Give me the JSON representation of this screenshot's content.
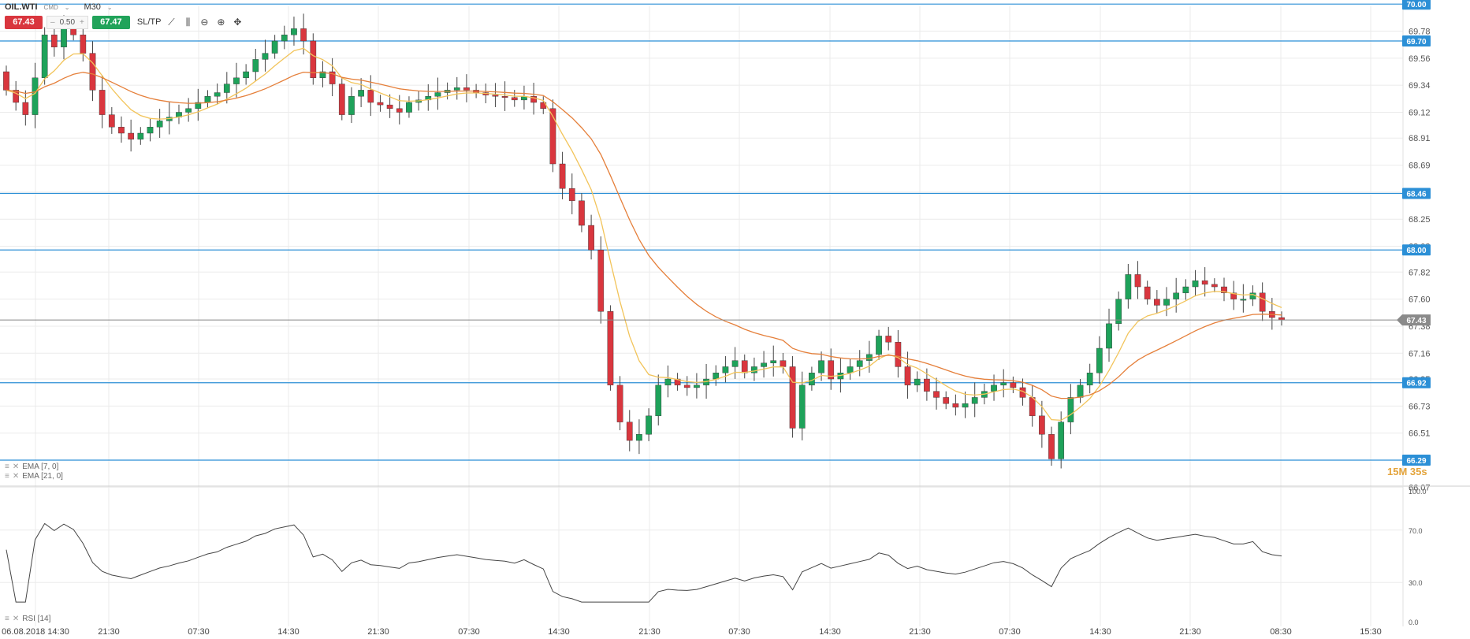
{
  "toolbar": {
    "symbol": "OIL.WTI",
    "symbol_type": "CMD",
    "timeframe": "M30",
    "sell_price": "67.43",
    "volume": "0.50",
    "volume_minus": "–",
    "volume_plus": "+",
    "buy_price": "67.47",
    "sltp_label": "SL/TP",
    "icons": [
      "line-tool-icon",
      "candles-icon",
      "zoom-out-icon",
      "zoom-in-icon",
      "crosshair-icon"
    ]
  },
  "indicators": {
    "ema_fast": "EMA [7, 0]",
    "ema_slow": "EMA [21, 0]",
    "rsi": "RSI [14]"
  },
  "countdown": "15M 35s",
  "colors": {
    "up": "#1ea25a",
    "down": "#d9363e",
    "ema_fast": "#f2c45a",
    "ema_slow": "#e57f3a",
    "hline": "#2b8fd6",
    "price_line": "#888888",
    "grid": "#ebebeb"
  },
  "chart_data": [
    {
      "type": "candlestick",
      "symbol": "OIL.WTI",
      "timeframe": "M30",
      "y_axis": {
        "ticks": [
          "69.78",
          "69.56",
          "69.34",
          "69.12",
          "68.91",
          "68.69",
          "68.47",
          "68.25",
          "68.03",
          "67.82",
          "67.60",
          "67.38",
          "67.16",
          "66.95",
          "66.73",
          "66.51",
          "66.29",
          "66.07"
        ],
        "range": [
          66.07,
          70.0
        ]
      },
      "x_axis": {
        "ticks": [
          "06.08.2018 14:30",
          "21:30",
          "07:30",
          "14:30",
          "21:30",
          "07:30",
          "14:30",
          "21:30",
          "07:30",
          "14:30",
          "21:30",
          "07:30",
          "14:30",
          "21:30",
          "08:30",
          "15:30"
        ]
      },
      "horizontal_lines": [
        {
          "value": 70.0,
          "label": "70.00"
        },
        {
          "value": 69.7,
          "label": "69.70"
        },
        {
          "value": 68.46,
          "label": "68.46"
        },
        {
          "value": 68.0,
          "label": "68.00"
        },
        {
          "value": 66.92,
          "label": "66.92"
        },
        {
          "value": 66.29,
          "label": "66.29"
        }
      ],
      "current_price": {
        "value": 67.43,
        "label": "67.43"
      },
      "closes": [
        69.3,
        69.2,
        69.1,
        69.4,
        69.75,
        69.65,
        69.8,
        69.75,
        69.6,
        69.3,
        69.1,
        69.0,
        68.95,
        68.9,
        68.95,
        69.0,
        69.05,
        69.08,
        69.12,
        69.15,
        69.2,
        69.25,
        69.28,
        69.35,
        69.4,
        69.45,
        69.55,
        69.6,
        69.7,
        69.75,
        69.8,
        69.7,
        69.4,
        69.45,
        69.35,
        69.1,
        69.25,
        69.3,
        69.2,
        69.18,
        69.15,
        69.12,
        69.2,
        69.22,
        69.25,
        69.28,
        69.3,
        69.32,
        69.3,
        69.28,
        69.26,
        69.25,
        69.24,
        69.22,
        69.25,
        69.2,
        69.15,
        68.7,
        68.5,
        68.4,
        68.2,
        68.0,
        67.5,
        66.9,
        66.6,
        66.45,
        66.5,
        66.65,
        66.9,
        66.95,
        66.9,
        66.88,
        66.9,
        66.95,
        67.0,
        67.05,
        67.1,
        67.0,
        67.05,
        67.08,
        67.1,
        67.05,
        66.55,
        66.9,
        67.0,
        67.1,
        66.95,
        67.0,
        67.05,
        67.1,
        67.15,
        67.3,
        67.25,
        67.05,
        66.9,
        66.95,
        66.85,
        66.8,
        66.75,
        66.72,
        66.75,
        66.8,
        66.85,
        66.9,
        66.92,
        66.88,
        66.8,
        66.65,
        66.5,
        66.3,
        66.6,
        66.8,
        66.9,
        67.0,
        67.2,
        67.4,
        67.6,
        67.8,
        67.7,
        67.6,
        67.55,
        67.6,
        67.65,
        67.7,
        67.75,
        67.72,
        67.7,
        67.65,
        67.6,
        67.6,
        67.65,
        67.5,
        67.45,
        67.43
      ],
      "ema_series": [
        {
          "name": "EMA [7, 0]"
        },
        {
          "name": "EMA [21, 0]"
        }
      ]
    },
    {
      "type": "line",
      "name": "RSI [14]",
      "y_axis": {
        "ticks": [
          "100.0",
          "70.0",
          "30.0",
          "0.0"
        ],
        "range": [
          0,
          100
        ]
      }
    }
  ]
}
